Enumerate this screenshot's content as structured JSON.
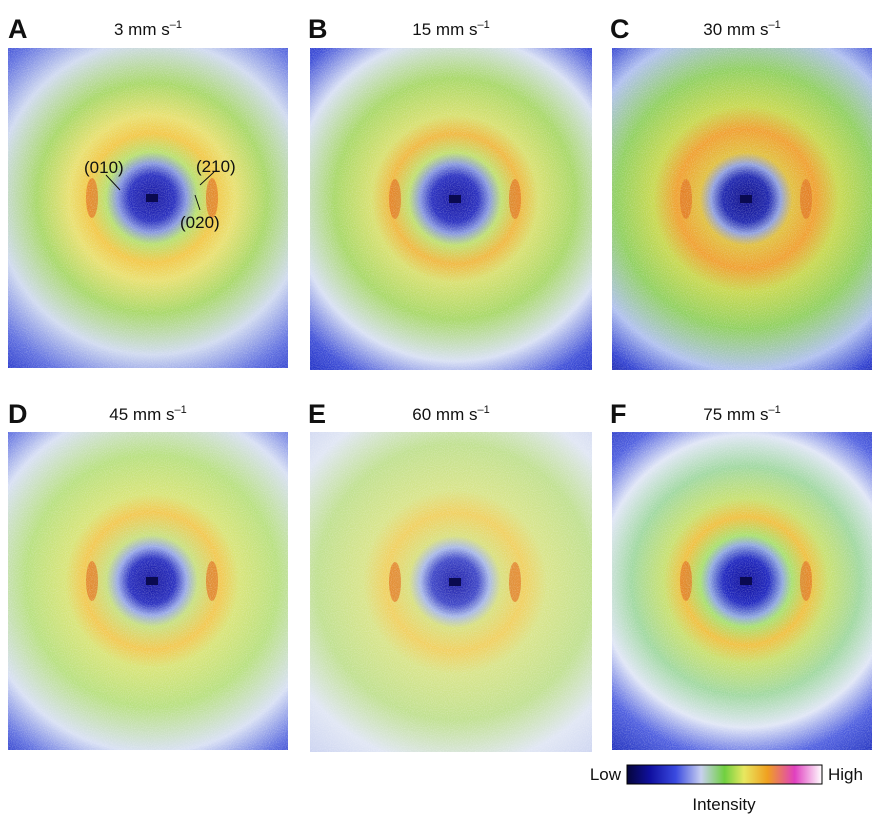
{
  "panels": [
    {
      "letter": "A",
      "title": "3 mm s",
      "title_sup": "–1"
    },
    {
      "letter": "B",
      "title": "15 mm s",
      "title_sup": "–1"
    },
    {
      "letter": "C",
      "title": "30 mm s",
      "title_sup": "–1"
    },
    {
      "letter": "D",
      "title": "45 mm s",
      "title_sup": "–1"
    },
    {
      "letter": "E",
      "title": "60 mm s",
      "title_sup": "–1"
    },
    {
      "letter": "F",
      "title": "75 mm s",
      "title_sup": "–1"
    }
  ],
  "annotations": [
    "(010)",
    "(210)",
    "(020)"
  ],
  "colorbar": {
    "low": "Low",
    "high": "High",
    "label": "Intensity"
  }
}
